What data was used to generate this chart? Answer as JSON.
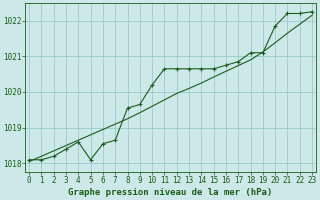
{
  "bg_color": "#cce8e8",
  "grid_color": "#99cccc",
  "line_color": "#1a5e1a",
  "xlabel": "Graphe pression niveau de la mer (hPa)",
  "x_hours": [
    0,
    1,
    2,
    3,
    4,
    5,
    6,
    7,
    8,
    9,
    10,
    11,
    12,
    13,
    14,
    15,
    16,
    17,
    18,
    19,
    20,
    21,
    22,
    23
  ],
  "y_measured": [
    1018.1,
    1018.1,
    1018.2,
    1018.4,
    1018.6,
    1018.1,
    1018.55,
    1018.65,
    1019.55,
    1019.65,
    1020.2,
    1020.65,
    1020.65,
    1020.65,
    1020.65,
    1020.65,
    1020.75,
    1020.85,
    1021.1,
    1021.1,
    1021.85,
    1022.2,
    1022.2,
    1022.25
  ],
  "y_trend": [
    1018.05,
    1018.2,
    1018.35,
    1018.5,
    1018.65,
    1018.8,
    1018.95,
    1019.1,
    1019.25,
    1019.42,
    1019.6,
    1019.78,
    1019.96,
    1020.1,
    1020.25,
    1020.42,
    1020.58,
    1020.74,
    1020.9,
    1021.12,
    1021.38,
    1021.65,
    1021.9,
    1022.15
  ],
  "ylim_min": 1017.75,
  "ylim_max": 1022.5,
  "ytick_min": 1018,
  "ytick_max": 1022,
  "ytick_step": 1,
  "xlim_min": -0.3,
  "xlim_max": 23.3,
  "tick_fontsize": 5.5,
  "label_fontsize": 6.5
}
